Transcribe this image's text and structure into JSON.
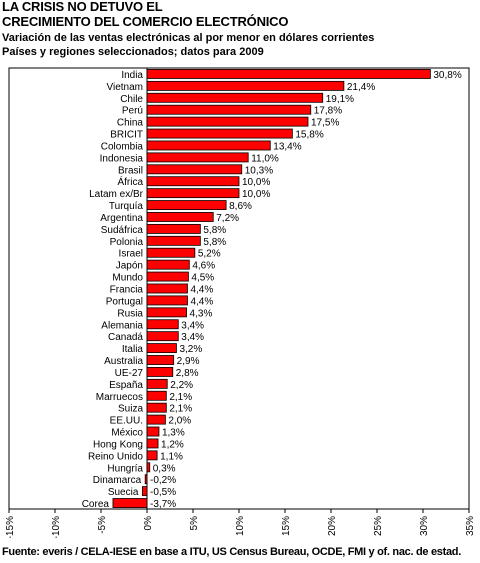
{
  "title_line1": "LA CRISIS NO DETUVO EL",
  "title_line2": "CRECIMIENTO DEL COMERCIO ELECTRÓNICO",
  "subtitle_line1": "Variación de las ventas electrónicas al por menor en dólares corrientes",
  "subtitle_line2": "Países y regiones seleccionados; datos para 2009",
  "source": "Fuente: everis / CELA-IESE en base a ITU, US Census Bureau, OCDE, FMI y of. nac. de estad.",
  "colors": {
    "bar": "#ff0000",
    "bar_outline": "#000000"
  },
  "chart_data": {
    "type": "bar",
    "orientation": "horizontal",
    "title": "",
    "xlabel": "",
    "ylabel": "",
    "xlim": [
      -15,
      35
    ],
    "grid": false,
    "categories": [
      "India",
      "Vietnam",
      "Chile",
      "Perú",
      "China",
      "BRICIT",
      "Colombia",
      "Indonesia",
      "Brasil",
      "África",
      "Latam ex/Br",
      "Turquía",
      "Argentina",
      "Sudáfrica",
      "Polonia",
      "Israel",
      "Japón",
      "Mundo",
      "Francia",
      "Portugal",
      "Rusia",
      "Alemania",
      "Canadá",
      "Italia",
      "Australia",
      "UE-27",
      "España",
      "Marruecos",
      "Suiza",
      "EE.UU.",
      "México",
      "Hong Kong",
      "Reino Unido",
      "Hungría",
      "Dinamarca",
      "Suecia",
      "Corea"
    ],
    "values": [
      30.8,
      21.4,
      19.1,
      17.8,
      17.5,
      15.8,
      13.4,
      11.0,
      10.3,
      10.0,
      10.0,
      8.6,
      7.2,
      5.8,
      5.8,
      5.2,
      4.6,
      4.5,
      4.4,
      4.4,
      4.3,
      3.4,
      3.4,
      3.2,
      2.9,
      2.8,
      2.2,
      2.1,
      2.1,
      2.0,
      1.3,
      1.2,
      1.1,
      0.3,
      -0.2,
      -0.5,
      -3.7
    ],
    "data_labels": [
      "30,8%",
      "21,4%",
      "19,1%",
      "17,8%",
      "17,5%",
      "15,8%",
      "13,4%",
      "11,0%",
      "10,3%",
      "10,0%",
      "10,0%",
      "8,6%",
      "7,2%",
      "5,8%",
      "5,8%",
      "5,2%",
      "4,6%",
      "4,5%",
      "4,4%",
      "4,4%",
      "4,3%",
      "3,4%",
      "3,4%",
      "3,2%",
      "2,9%",
      "2,8%",
      "2,2%",
      "2,1%",
      "2,1%",
      "2,0%",
      "1,3%",
      "1,2%",
      "1,1%",
      "0,3%",
      "-0,2%",
      "-0,5%",
      "-3,7%"
    ],
    "x_ticks": [
      -15,
      -10,
      -5,
      0,
      5,
      10,
      15,
      20,
      25,
      30,
      35
    ],
    "x_tick_labels": [
      "-15%",
      "-10%",
      "-5%",
      "0%",
      "5%",
      "10%",
      "15%",
      "20%",
      "25%",
      "30%",
      "35%"
    ]
  }
}
